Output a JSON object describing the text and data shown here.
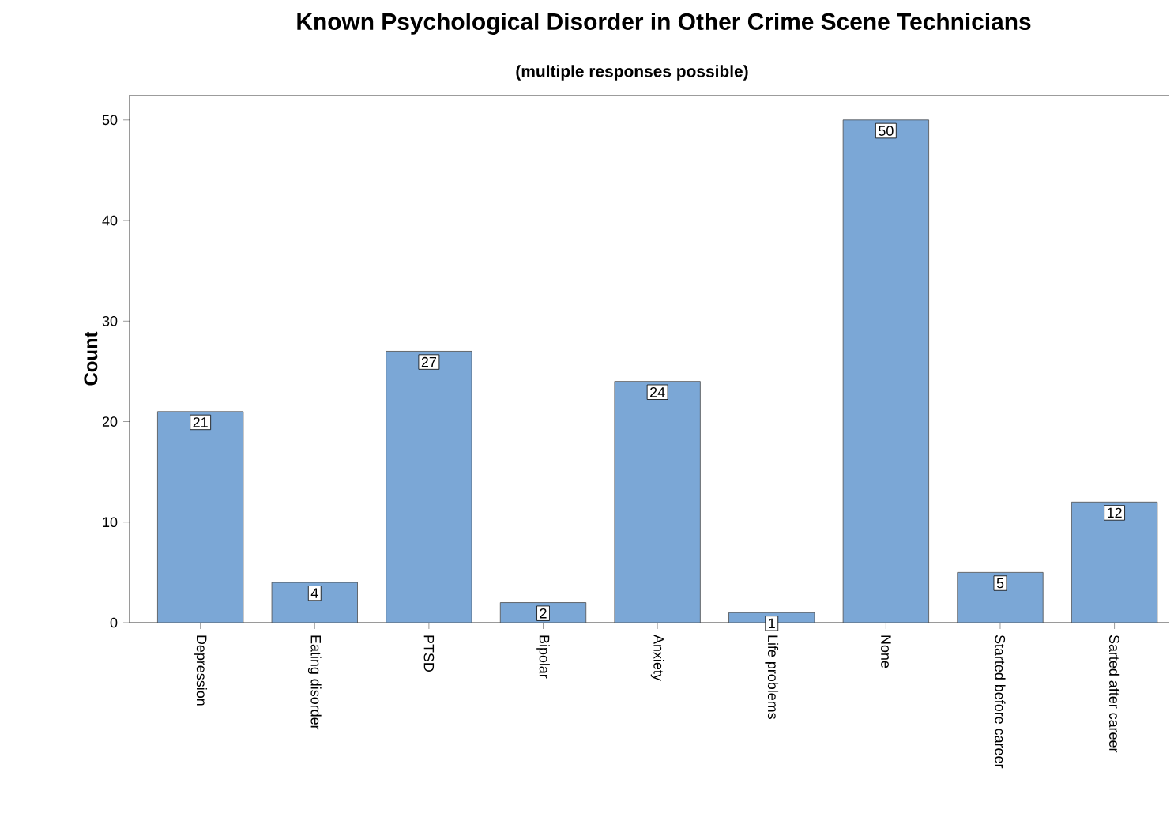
{
  "chart_data": {
    "type": "bar",
    "title": "Known Psychological Disorder in Other Crime Scene Technicians",
    "subtitle": "(multiple responses possible)",
    "ylabel": "Count",
    "categories": [
      "Depression",
      "Eating disorder",
      "PTSD",
      "Bipolar",
      "Anxiety",
      "Life problems",
      "None",
      "Started before career",
      "Sarted after career"
    ],
    "values": [
      21,
      4,
      27,
      2,
      24,
      1,
      50,
      5,
      12
    ],
    "color": "#7ba7d6",
    "ylim": [
      0,
      52.5
    ],
    "yticks": [
      0,
      10,
      20,
      30,
      40,
      50
    ],
    "data_labels": true
  }
}
